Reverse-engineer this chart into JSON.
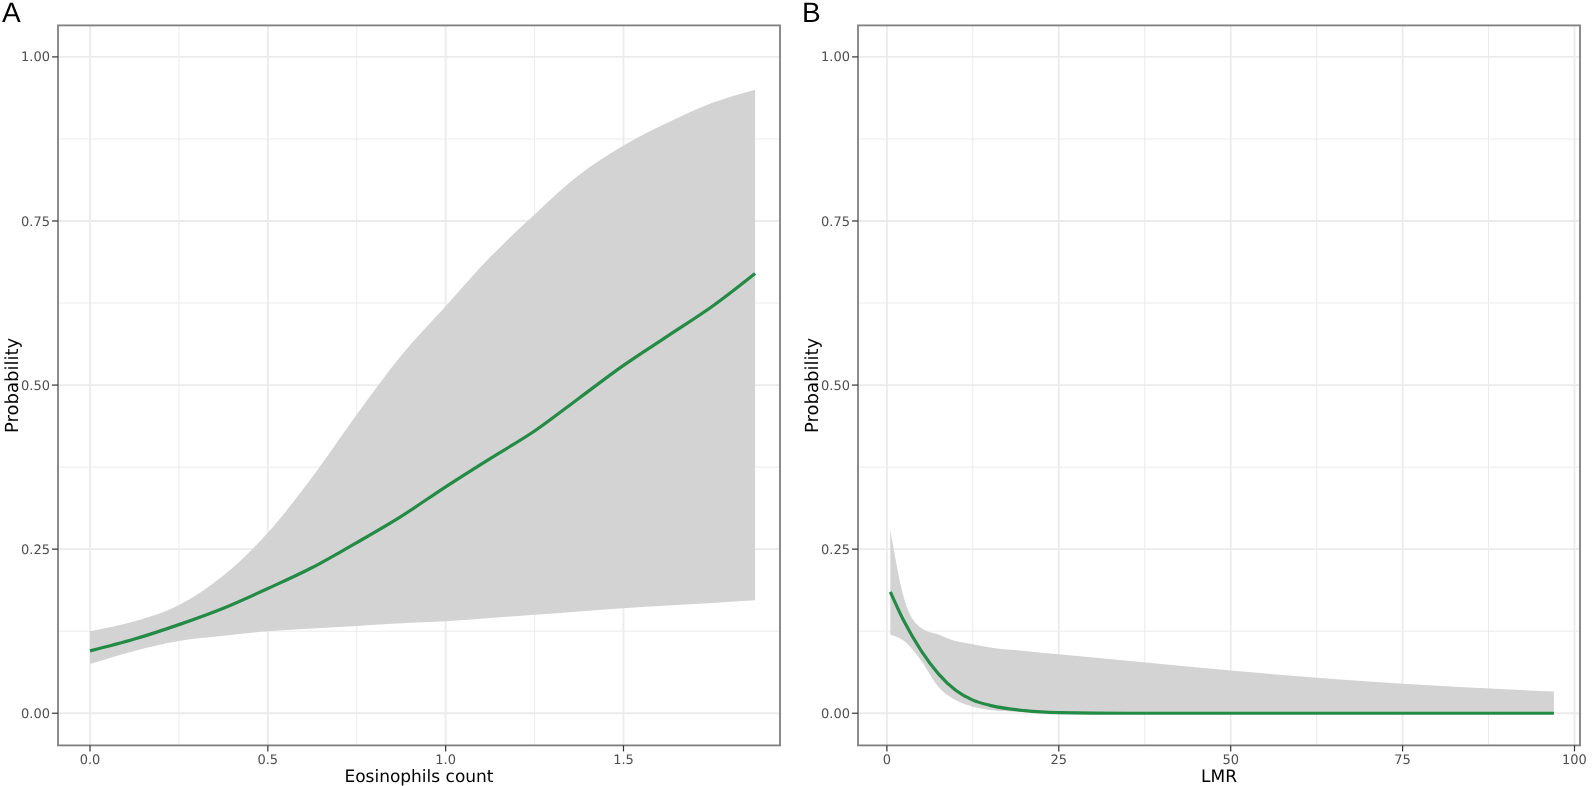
{
  "chart_data": [
    {
      "type": "line",
      "title": "A",
      "xlabel": "Eosinophils count",
      "ylabel": "Probability",
      "xlim": [
        -0.09,
        1.94
      ],
      "xticks": [
        {
          "value": 0,
          "label": "0.0"
        },
        0.5,
        {
          "value": 1,
          "label": "1.0"
        },
        1.5
      ],
      "ylim": [
        -0.049,
        1.048
      ],
      "yticks": [
        {
          "value": 0,
          "label": "0.00"
        },
        {
          "value": 0.25,
          "label": "0.25"
        },
        {
          "value": 0.5,
          "label": "0.50"
        },
        {
          "value": 0.75,
          "label": "0.75"
        },
        {
          "value": 1,
          "label": "1.00"
        }
      ],
      "grid": true,
      "series": [
        {
          "color": "#238b45",
          "x": [
            0,
            0.125,
            0.25,
            0.375,
            0.5,
            0.625,
            0.75,
            0.875,
            1.0,
            1.125,
            1.25,
            1.375,
            1.5,
            1.625,
            1.75,
            1.87
          ],
          "values": [
            0.095,
            0.113,
            0.135,
            0.16,
            0.19,
            0.222,
            0.26,
            0.3,
            0.345,
            0.388,
            0.43,
            0.48,
            0.53,
            0.575,
            0.62,
            0.67
          ],
          "lower": [
            0.075,
            0.095,
            0.11,
            0.118,
            0.125,
            0.129,
            0.133,
            0.137,
            0.14,
            0.145,
            0.15,
            0.155,
            0.16,
            0.164,
            0.168,
            0.172
          ],
          "upper": [
            0.125,
            0.14,
            0.165,
            0.21,
            0.275,
            0.36,
            0.455,
            0.545,
            0.62,
            0.695,
            0.76,
            0.82,
            0.865,
            0.9,
            0.93,
            0.95
          ]
        }
      ]
    },
    {
      "type": "line",
      "title": "B",
      "xlabel": "LMR",
      "ylabel": "Probability",
      "xlim": [
        -4.2,
        100.8
      ],
      "xticks": [
        0,
        25,
        50,
        75,
        100
      ],
      "ylim": [
        -0.049,
        1.048
      ],
      "yticks": [
        {
          "value": 0,
          "label": "0.00"
        },
        {
          "value": 0.25,
          "label": "0.25"
        },
        {
          "value": 0.5,
          "label": "0.50"
        },
        {
          "value": 0.75,
          "label": "0.75"
        },
        {
          "value": 1,
          "label": "1.00"
        }
      ],
      "grid": true,
      "series": [
        {
          "color": "#238b45",
          "x": [
            0.5,
            2.5,
            5,
            7.5,
            10,
            12.5,
            15,
            20,
            25,
            35,
            50,
            75,
            97
          ],
          "values": [
            0.185,
            0.14,
            0.095,
            0.06,
            0.035,
            0.02,
            0.012,
            0.004,
            0.001,
            0,
            0,
            0,
            0
          ],
          "lower": [
            0.12,
            0.11,
            0.08,
            0.04,
            0.02,
            0.01,
            0.005,
            0.002,
            0,
            0,
            0,
            0,
            0
          ],
          "upper": [
            0.28,
            0.175,
            0.13,
            0.12,
            0.11,
            0.105,
            0.1,
            0.095,
            0.09,
            0.08,
            0.065,
            0.045,
            0.033
          ]
        }
      ]
    }
  ]
}
